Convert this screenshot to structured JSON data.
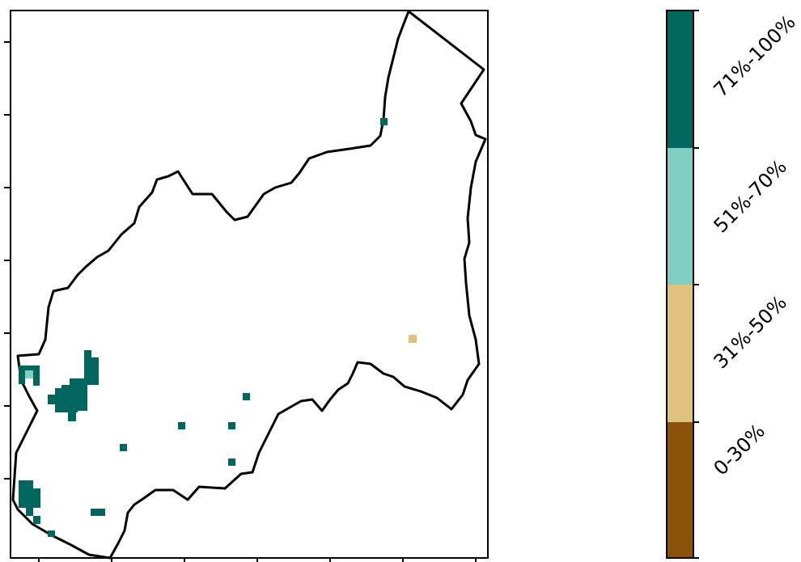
{
  "map": {
    "has_region_outline": true,
    "axis_tick_labels_visible": false
  },
  "legend": {
    "categories": [
      {
        "label": "71%-100%",
        "color": "#01665e"
      },
      {
        "label": "51%-70%",
        "color": "#80cdc1"
      },
      {
        "label": "31%-50%",
        "color": "#dfc27d"
      },
      {
        "label": "0-30%",
        "color": "#8c510a"
      }
    ]
  },
  "chart_data": {
    "type": "heatmap",
    "legend_orientation": "vertical colorbar, right",
    "categories": [
      "0-30%",
      "31%-50%",
      "51%-70%",
      "71%-100%"
    ]
  }
}
